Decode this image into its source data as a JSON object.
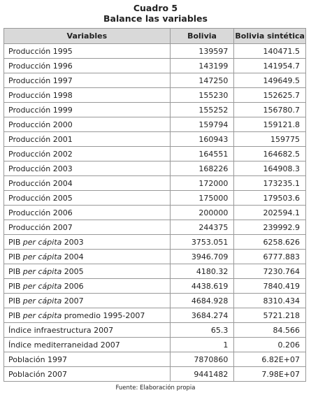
{
  "header": {
    "title": "Cuadro 5",
    "subtitle": "Balance las variables"
  },
  "table": {
    "columns": [
      "Variables",
      "Bolivia",
      "Bolivia sintética"
    ],
    "rows": [
      [
        [
          "Producción 1995"
        ],
        "139597",
        "140471.5"
      ],
      [
        [
          "Producción 1996"
        ],
        "143199",
        "141954.7"
      ],
      [
        [
          "Producción 1997"
        ],
        "147250",
        "149649.5"
      ],
      [
        [
          "Producción 1998"
        ],
        "155230",
        "152625.7"
      ],
      [
        [
          "Producción 1999"
        ],
        "155252",
        "156780.7"
      ],
      [
        [
          "Producción 2000"
        ],
        "159794",
        "159121.8"
      ],
      [
        [
          "Producción 2001"
        ],
        "160943",
        "159775"
      ],
      [
        [
          "Producción 2002"
        ],
        "164551",
        "164682.5"
      ],
      [
        [
          "Producción 2003"
        ],
        "168226",
        "164908.3"
      ],
      [
        [
          "Producción 2004"
        ],
        "172000",
        "173235.1"
      ],
      [
        [
          "Producción 2005"
        ],
        "175000",
        "179503.6"
      ],
      [
        [
          "Producción 2006"
        ],
        "200000",
        "202594.1"
      ],
      [
        [
          "Producción 2007"
        ],
        "244375",
        "239992.9"
      ],
      [
        [
          "PIB",
          "per cápita",
          "2003"
        ],
        "3753.051",
        "6258.626"
      ],
      [
        [
          "PIB",
          "per cápita",
          "2004"
        ],
        "3946.709",
        "6777.883"
      ],
      [
        [
          "PIB",
          "per cápita",
          "2005"
        ],
        "4180.32",
        "7230.764"
      ],
      [
        [
          "PIB",
          "per cápita",
          "2006"
        ],
        "4438.619",
        "7840.419"
      ],
      [
        [
          "PIB",
          "per cápita",
          "2007"
        ],
        "4684.928",
        "8310.434"
      ],
      [
        [
          "PIB",
          "per cápita",
          "promedio 1995-2007"
        ],
        "3684.274",
        "5721.218"
      ],
      [
        [
          "Índice infraestructura 2007"
        ],
        "65.3",
        "84.566"
      ],
      [
        [
          "Índice mediterraneidad 2007"
        ],
        "1",
        "0.206"
      ],
      [
        [
          "Población 1997"
        ],
        "7870860",
        "6.82E+07"
      ],
      [
        [
          "Población 2007"
        ],
        "9441482",
        "7.98E+07"
      ]
    ]
  },
  "footer": "Fuente: Elaboración propia"
}
